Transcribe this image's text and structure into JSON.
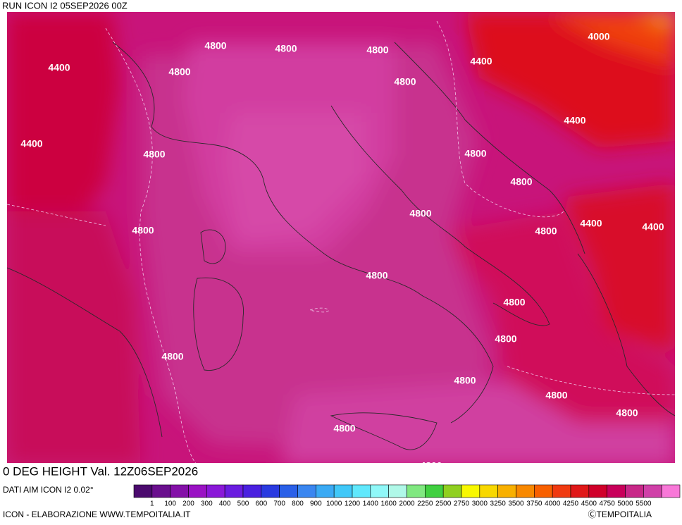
{
  "header": {
    "run": "RUN ICON I2 05SEP2026 00Z",
    "title": "0 DEG HEIGHT Val. 12Z06SEP2026"
  },
  "footer": {
    "source": "DATI AIM ICON I2 0.02°",
    "credit": "ICON - ELABORAZIONE WWW.TEMPOITALIA.IT",
    "copyright": "ⒸTEMPOITALIA"
  },
  "contour_labels": [
    "4400",
    "4000",
    "4800",
    "4800",
    "4800",
    "4400",
    "4400",
    "4800",
    "4800",
    "4400",
    "4400",
    "4800",
    "4800",
    "4800",
    "4800",
    "4800",
    "4400",
    "4400",
    "4800",
    "4800",
    "4800",
    "4800",
    "4800",
    "4800",
    "4800",
    "4800",
    "4800",
    "4800"
  ],
  "colorbar": {
    "labels": [
      "1",
      "100",
      "200",
      "300",
      "400",
      "500",
      "600",
      "700",
      "800",
      "900",
      "1000",
      "1200",
      "1400",
      "1600",
      "2000",
      "2250",
      "2500",
      "2750",
      "3000",
      "3250",
      "3500",
      "3750",
      "4000",
      "4250",
      "4500",
      "4750",
      "5000",
      "5500"
    ],
    "colors": [
      "#4b0a6e",
      "#6a0f8e",
      "#8410a8",
      "#9a12c4",
      "#8a18d8",
      "#6a1ce0",
      "#4a20e0",
      "#2a3ae0",
      "#2a60e8",
      "#3a86f0",
      "#3aaaf4",
      "#40c8f8",
      "#60e8fc",
      "#90f8f8",
      "#b0f8e8",
      "#80e880",
      "#40d040",
      "#90d020",
      "#f8f800",
      "#f8d800",
      "#f8b000",
      "#f88800",
      "#f86000",
      "#f03a10",
      "#e01818",
      "#d0002a",
      "#c8005a",
      "#c82888",
      "#d040a8",
      "#f878d8"
    ]
  }
}
